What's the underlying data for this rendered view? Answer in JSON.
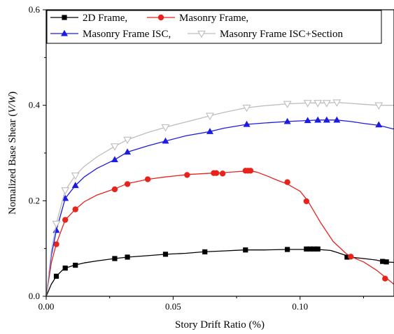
{
  "chart_data": {
    "type": "line",
    "xlabel": "Story Drift Ratio (%)",
    "ylabel_prefix": "Nomalized Base Shear (",
    "ylabel_var": "V/W",
    "ylabel_suffix": ")",
    "xlim": [
      0.0,
      0.137
    ],
    "ylim": [
      0.0,
      0.6
    ],
    "xticks": [
      0.0,
      0.05,
      0.1
    ],
    "xtick_labels": [
      "0.00",
      "0.05",
      "0.10"
    ],
    "yticks": [
      0.0,
      0.2,
      0.4,
      0.6
    ],
    "ytick_labels": [
      "0.0",
      "0.2",
      "0.4",
      "0.6"
    ],
    "grid": false,
    "legend_position": "top",
    "series": [
      {
        "name": "2D Frame,",
        "color": "#000000",
        "marker": "square",
        "x": [
          0.0,
          0.002,
          0.004,
          0.007,
          0.011,
          0.015,
          0.02,
          0.027,
          0.032,
          0.04,
          0.047,
          0.055,
          0.062,
          0.07,
          0.078,
          0.086,
          0.095,
          0.1,
          0.103,
          0.105,
          0.107,
          0.112,
          0.115,
          0.12,
          0.125,
          0.13,
          0.133,
          0.137
        ],
        "y": [
          0.0,
          0.025,
          0.042,
          0.058,
          0.065,
          0.07,
          0.074,
          0.079,
          0.082,
          0.085,
          0.088,
          0.09,
          0.093,
          0.095,
          0.097,
          0.097,
          0.098,
          0.098,
          0.098,
          0.098,
          0.098,
          0.096,
          0.091,
          0.082,
          0.079,
          0.076,
          0.072,
          0.071
        ],
        "marker_x": [
          0.004,
          0.0075,
          0.0115,
          0.027,
          0.032,
          0.047,
          0.0625,
          0.0785,
          0.095,
          0.1025,
          0.104,
          0.1055,
          0.107,
          0.1185,
          0.1325,
          0.134
        ],
        "marker_y": [
          0.042,
          0.059,
          0.065,
          0.079,
          0.082,
          0.088,
          0.093,
          0.097,
          0.098,
          0.099,
          0.099,
          0.099,
          0.099,
          0.082,
          0.073,
          0.072
        ]
      },
      {
        "name": "Masonry Frame,",
        "color": "#e8231c",
        "marker": "circle",
        "x": [
          0.0,
          0.002,
          0.004,
          0.0075,
          0.0115,
          0.015,
          0.02,
          0.027,
          0.032,
          0.04,
          0.047,
          0.056,
          0.066,
          0.07,
          0.078,
          0.08,
          0.083,
          0.087,
          0.091,
          0.095,
          0.1,
          0.103,
          0.108,
          0.113,
          0.118,
          0.12,
          0.125,
          0.13,
          0.134,
          0.137
        ],
        "y": [
          0.0,
          0.07,
          0.11,
          0.16,
          0.182,
          0.198,
          0.212,
          0.225,
          0.236,
          0.245,
          0.25,
          0.255,
          0.258,
          0.259,
          0.262,
          0.263,
          0.26,
          0.252,
          0.243,
          0.235,
          0.22,
          0.2,
          0.155,
          0.115,
          0.09,
          0.083,
          0.072,
          0.055,
          0.038,
          0.025
        ],
        "marker_x": [
          0.004,
          0.0075,
          0.0115,
          0.027,
          0.032,
          0.04,
          0.0555,
          0.066,
          0.067,
          0.0695,
          0.0785,
          0.0795,
          0.0805,
          0.095,
          0.1025,
          0.12,
          0.1335
        ],
        "marker_y": [
          0.109,
          0.16,
          0.182,
          0.224,
          0.235,
          0.245,
          0.254,
          0.258,
          0.258,
          0.257,
          0.263,
          0.263,
          0.263,
          0.239,
          0.199,
          0.083,
          0.037
        ]
      },
      {
        "name": "Masonry Frame ISC,",
        "color": "#1c1ce0",
        "marker": "triangle-up",
        "x": [
          0.0,
          0.002,
          0.004,
          0.0075,
          0.0115,
          0.015,
          0.02,
          0.027,
          0.032,
          0.04,
          0.047,
          0.055,
          0.0645,
          0.07,
          0.079,
          0.086,
          0.095,
          0.103,
          0.107,
          0.1105,
          0.1145,
          0.12,
          0.125,
          0.131,
          0.137
        ],
        "y": [
          0.0,
          0.085,
          0.138,
          0.205,
          0.232,
          0.25,
          0.268,
          0.286,
          0.302,
          0.315,
          0.325,
          0.336,
          0.345,
          0.352,
          0.36,
          0.363,
          0.366,
          0.368,
          0.369,
          0.369,
          0.369,
          0.366,
          0.362,
          0.358,
          0.35
        ],
        "marker_x": [
          0.004,
          0.0075,
          0.0115,
          0.027,
          0.032,
          0.047,
          0.0645,
          0.079,
          0.095,
          0.103,
          0.107,
          0.1105,
          0.1145,
          0.131
        ],
        "marker_y": [
          0.138,
          0.205,
          0.232,
          0.286,
          0.302,
          0.325,
          0.345,
          0.36,
          0.366,
          0.368,
          0.369,
          0.369,
          0.369,
          0.359
        ]
      },
      {
        "name": "Masonry Frame ISC+Section",
        "color": "#bdbdbd",
        "marker": "triangle-down-open",
        "x": [
          0.0,
          0.002,
          0.004,
          0.0075,
          0.0115,
          0.015,
          0.02,
          0.027,
          0.032,
          0.04,
          0.047,
          0.055,
          0.0645,
          0.07,
          0.079,
          0.086,
          0.095,
          0.103,
          0.107,
          0.1105,
          0.1145,
          0.12,
          0.125,
          0.131,
          0.137
        ],
        "y": [
          0.0,
          0.095,
          0.152,
          0.222,
          0.253,
          0.272,
          0.292,
          0.314,
          0.328,
          0.343,
          0.354,
          0.365,
          0.378,
          0.385,
          0.395,
          0.399,
          0.403,
          0.405,
          0.405,
          0.405,
          0.406,
          0.404,
          0.402,
          0.4,
          0.4
        ],
        "marker_x": [
          0.004,
          0.0075,
          0.0115,
          0.027,
          0.032,
          0.047,
          0.0645,
          0.079,
          0.095,
          0.103,
          0.107,
          0.1105,
          0.1145,
          0.131
        ],
        "marker_y": [
          0.152,
          0.222,
          0.253,
          0.314,
          0.328,
          0.354,
          0.378,
          0.395,
          0.403,
          0.405,
          0.405,
          0.405,
          0.406,
          0.4
        ]
      }
    ]
  }
}
